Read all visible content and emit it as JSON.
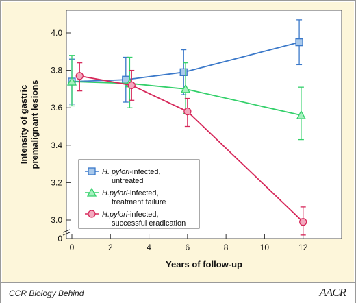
{
  "footer": {
    "caption": "CCR Biology Behind",
    "logo": "AACR"
  },
  "chart_data": {
    "type": "line",
    "title": "",
    "xlabel": "Years of follow-up",
    "ylabel_lines": [
      "Intensity of gastric",
      "premalignant lesions"
    ],
    "xlim": [
      0,
      14
    ],
    "ylim_display": [
      2.9,
      4.05
    ],
    "axis_break": true,
    "x_ticks": [
      0,
      2,
      4,
      6,
      8,
      10,
      12
    ],
    "y_ticks": [
      {
        "value": 0,
        "label": "0"
      },
      {
        "value": 3.0,
        "label": "3.0"
      },
      {
        "value": 3.2,
        "label": "3.2"
      },
      {
        "value": 3.4,
        "label": "3.4"
      },
      {
        "value": 3.6,
        "label": "3.6"
      },
      {
        "value": 3.8,
        "label": "3.8"
      },
      {
        "value": 4.0,
        "label": "4.0"
      }
    ],
    "grid": false,
    "legend_position": "bottom-left",
    "series": [
      {
        "name_prefix": "H. pylori",
        "name_rest": "-infected,",
        "name_line2": "untreated",
        "color": "#3a78c9",
        "fill": "#a9c9ec",
        "marker": "square",
        "points": [
          {
            "x": 0,
            "y": 3.74,
            "lo": 3.62,
            "hi": 3.86
          },
          {
            "x": 2.8,
            "y": 3.75,
            "lo": 3.63,
            "hi": 3.87
          },
          {
            "x": 5.8,
            "y": 3.79,
            "lo": 3.67,
            "hi": 3.91
          },
          {
            "x": 11.8,
            "y": 3.95,
            "lo": 3.83,
            "hi": 4.07
          }
        ]
      },
      {
        "name_prefix": "H.pylori",
        "name_rest": "-infected,",
        "name_line2": "treatment failure",
        "color": "#33d06a",
        "fill": "#a6f0bf",
        "marker": "triangle",
        "points": [
          {
            "x": 0,
            "y": 3.74,
            "lo": 3.61,
            "hi": 3.88
          },
          {
            "x": 3.0,
            "y": 3.73,
            "lo": 3.6,
            "hi": 3.87
          },
          {
            "x": 5.9,
            "y": 3.7,
            "lo": 3.57,
            "hi": 3.84
          },
          {
            "x": 11.9,
            "y": 3.56,
            "lo": 3.43,
            "hi": 3.71
          }
        ]
      },
      {
        "name_prefix": "H.pylori",
        "name_rest": "-infected,",
        "name_line2": "successful eradication",
        "color": "#d6285a",
        "fill": "#f3a9be",
        "marker": "circle",
        "points": [
          {
            "x": 0.4,
            "y": 3.77,
            "lo": 3.69,
            "hi": 3.84
          },
          {
            "x": 3.1,
            "y": 3.72,
            "lo": 3.64,
            "hi": 3.8
          },
          {
            "x": 6.0,
            "y": 3.58,
            "lo": 3.5,
            "hi": 3.65
          },
          {
            "x": 12.0,
            "y": 2.99,
            "lo": 2.92,
            "hi": 3.07
          }
        ]
      }
    ]
  }
}
